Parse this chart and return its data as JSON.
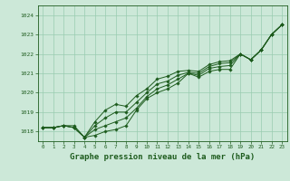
{
  "background_color": "#cce8d8",
  "grid_color": "#99ccb0",
  "line_color": "#1e5c1e",
  "xlabel": "Graphe pression niveau de la mer (hPa)",
  "xlabel_fontsize": 6.5,
  "ylim": [
    1017.5,
    1024.5
  ],
  "xlim": [
    -0.5,
    23.5
  ],
  "yticks": [
    1018,
    1019,
    1020,
    1021,
    1022,
    1023,
    1024
  ],
  "xticks": [
    0,
    1,
    2,
    3,
    4,
    5,
    6,
    7,
    8,
    9,
    10,
    11,
    12,
    13,
    14,
    15,
    16,
    17,
    18,
    19,
    20,
    21,
    22,
    23
  ],
  "series": [
    [
      1018.2,
      1018.2,
      1018.3,
      1018.3,
      1017.7,
      1017.8,
      1018.0,
      1018.1,
      1018.3,
      1019.1,
      1019.7,
      1020.0,
      1020.2,
      1020.5,
      1021.0,
      1020.8,
      1021.1,
      1021.2,
      1021.2,
      1022.0,
      1021.7,
      1022.2,
      1023.0,
      1023.5
    ],
    [
      1018.2,
      1018.2,
      1018.3,
      1018.2,
      1017.7,
      1018.1,
      1018.3,
      1018.5,
      1018.7,
      1019.2,
      1019.8,
      1020.2,
      1020.4,
      1020.7,
      1021.0,
      1020.9,
      1021.25,
      1021.35,
      1021.4,
      1022.0,
      1021.7,
      1022.2,
      1023.0,
      1023.5
    ],
    [
      1018.2,
      1018.2,
      1018.3,
      1018.2,
      1017.7,
      1018.3,
      1018.7,
      1019.0,
      1019.0,
      1019.5,
      1020.0,
      1020.45,
      1020.6,
      1020.9,
      1021.05,
      1021.0,
      1021.35,
      1021.5,
      1021.55,
      1022.0,
      1021.7,
      1022.2,
      1023.0,
      1023.5
    ],
    [
      1018.2,
      1018.2,
      1018.3,
      1018.2,
      1017.7,
      1018.5,
      1019.1,
      1019.4,
      1019.3,
      1019.85,
      1020.2,
      1020.7,
      1020.85,
      1021.1,
      1021.15,
      1021.1,
      1021.45,
      1021.6,
      1021.65,
      1022.0,
      1021.7,
      1022.2,
      1023.0,
      1023.5
    ]
  ]
}
